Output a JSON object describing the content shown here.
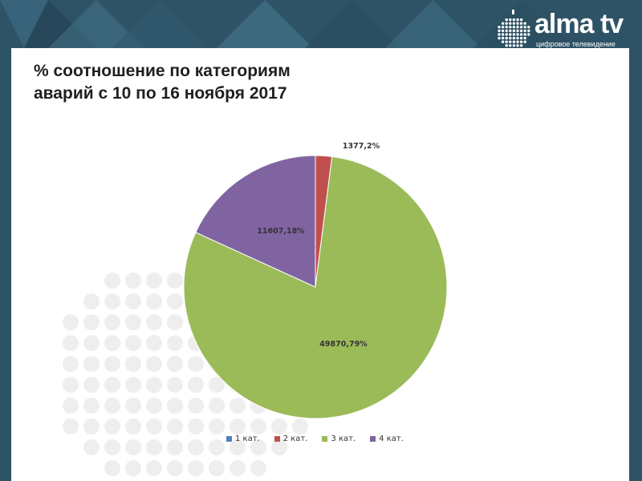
{
  "slide": {
    "title_line1": "% соотношение по категориям",
    "title_line2": "аварий с 10 по 16 ноября 2017"
  },
  "logo": {
    "name": "alma tv",
    "tagline": "цифровое телевидение",
    "icon": "apple-dots-icon"
  },
  "colors": {
    "banner": "#2b4a5e",
    "cat1": "#4f81bd",
    "cat2": "#c0504d",
    "cat3": "#9bbb59",
    "cat4": "#8064a2"
  },
  "chart_data": {
    "type": "pie",
    "labels": [
      "1 кат.",
      "2 кат.",
      "3 кат.",
      "4 кат."
    ],
    "values": [
      0,
      2,
      79,
      18
    ],
    "data_labels": [
      "",
      "1377,2%",
      "49870,79%",
      "11607,18%"
    ],
    "colors": [
      "#4f81bd",
      "#c0504d",
      "#9bbb59",
      "#8064a2"
    ],
    "legend_position": "bottom"
  }
}
